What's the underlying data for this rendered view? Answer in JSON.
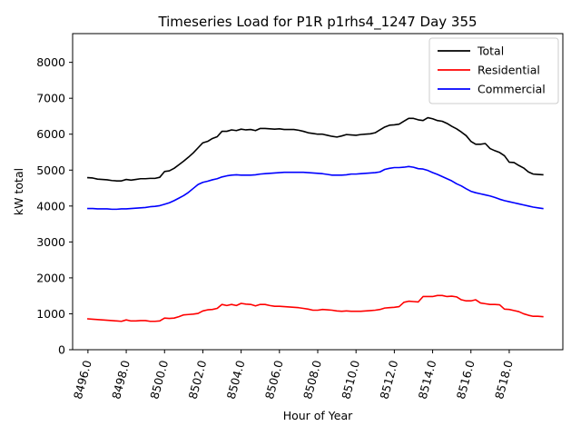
{
  "chart_data": {
    "type": "line",
    "title": "Timeseries Load for P1R p1rhs4_1247  Day 355",
    "xlabel": "Hour of Year",
    "ylabel": "kW total",
    "xlim": [
      8495.2,
      8520.8
    ],
    "ylim": [
      0,
      8800
    ],
    "x_ticks": [
      8496,
      8498,
      8500,
      8502,
      8504,
      8506,
      8508,
      8510,
      8512,
      8514,
      8516,
      8518
    ],
    "x_tick_labels": [
      "8496.0",
      "8498.0",
      "8500.0",
      "8502.0",
      "8504.0",
      "8506.0",
      "8508.0",
      "8510.0",
      "8512.0",
      "8514.0",
      "8516.0",
      "8518.0"
    ],
    "y_ticks": [
      0,
      1000,
      2000,
      3000,
      4000,
      5000,
      6000,
      7000,
      8000
    ],
    "y_tick_labels": [
      "0",
      "1000",
      "2000",
      "3000",
      "4000",
      "5000",
      "6000",
      "7000",
      "8000"
    ],
    "legend_position": "top-right",
    "x_start": 8496.0,
    "x_step": 0.25,
    "series": [
      {
        "name": "Total",
        "color": "#000000",
        "values": [
          4790,
          4780,
          4750,
          4740,
          4730,
          4710,
          4700,
          4700,
          4740,
          4720,
          4740,
          4760,
          4760,
          4770,
          4770,
          4800,
          4960,
          4980,
          5050,
          5150,
          5250,
          5360,
          5480,
          5620,
          5760,
          5800,
          5880,
          5930,
          6080,
          6080,
          6120,
          6100,
          6140,
          6120,
          6130,
          6100,
          6160,
          6160,
          6150,
          6140,
          6150,
          6130,
          6130,
          6130,
          6110,
          6080,
          6040,
          6020,
          6000,
          6000,
          5970,
          5940,
          5920,
          5950,
          5990,
          5980,
          5970,
          5990,
          6000,
          6010,
          6040,
          6120,
          6200,
          6250,
          6260,
          6280,
          6360,
          6440,
          6440,
          6400,
          6380,
          6460,
          6430,
          6380,
          6360,
          6300,
          6220,
          6150,
          6060,
          5960,
          5800,
          5720,
          5720,
          5740,
          5600,
          5540,
          5490,
          5400,
          5220,
          5210,
          5130,
          5060,
          4950,
          4890,
          4880,
          4870
        ]
      },
      {
        "name": "Residential",
        "color": "#ff0000",
        "values": [
          860,
          850,
          840,
          830,
          820,
          810,
          800,
          790,
          830,
          800,
          800,
          810,
          810,
          790,
          790,
          800,
          880,
          870,
          880,
          920,
          970,
          980,
          990,
          1010,
          1080,
          1110,
          1120,
          1150,
          1260,
          1230,
          1260,
          1230,
          1290,
          1270,
          1260,
          1220,
          1260,
          1260,
          1230,
          1210,
          1210,
          1200,
          1190,
          1180,
          1170,
          1150,
          1130,
          1100,
          1100,
          1120,
          1110,
          1100,
          1080,
          1070,
          1080,
          1070,
          1070,
          1070,
          1080,
          1090,
          1100,
          1120,
          1160,
          1170,
          1180,
          1200,
          1320,
          1350,
          1340,
          1330,
          1480,
          1480,
          1480,
          1510,
          1510,
          1480,
          1490,
          1470,
          1390,
          1360,
          1360,
          1390,
          1300,
          1280,
          1260,
          1260,
          1250,
          1130,
          1120,
          1090,
          1060,
          1000,
          960,
          930,
          930,
          920
        ]
      },
      {
        "name": "Commercial",
        "color": "#0000ff",
        "values": [
          3930,
          3930,
          3920,
          3920,
          3920,
          3910,
          3910,
          3920,
          3920,
          3930,
          3940,
          3950,
          3960,
          3980,
          3990,
          4010,
          4050,
          4090,
          4150,
          4220,
          4290,
          4380,
          4490,
          4600,
          4660,
          4690,
          4730,
          4760,
          4810,
          4840,
          4860,
          4870,
          4860,
          4860,
          4860,
          4870,
          4890,
          4900,
          4910,
          4920,
          4930,
          4940,
          4940,
          4940,
          4940,
          4940,
          4930,
          4920,
          4910,
          4900,
          4880,
          4860,
          4860,
          4860,
          4870,
          4890,
          4890,
          4900,
          4910,
          4920,
          4930,
          4950,
          5020,
          5050,
          5070,
          5070,
          5080,
          5100,
          5080,
          5040,
          5030,
          4990,
          4930,
          4880,
          4820,
          4760,
          4700,
          4620,
          4560,
          4480,
          4410,
          4370,
          4340,
          4310,
          4280,
          4240,
          4190,
          4150,
          4120,
          4090,
          4060,
          4030,
          4000,
          3970,
          3950,
          3930
        ]
      }
    ]
  }
}
